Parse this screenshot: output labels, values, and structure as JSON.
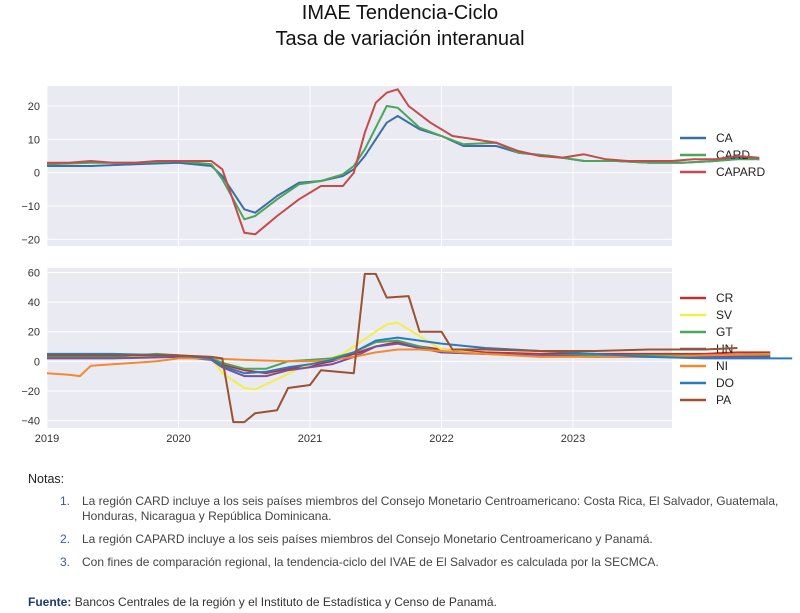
{
  "title": "IMAE Tendencia-Ciclo",
  "subtitle": "Tasa de variación interanual",
  "chart_data": [
    {
      "type": "line",
      "x_start": "2019-01",
      "x_ticks": [
        "2019",
        "2020",
        "2021",
        "2022",
        "2023"
      ],
      "ylim": [
        -22,
        26
      ],
      "y_ticks": [
        20,
        10,
        0,
        -10,
        -20
      ],
      "grid": true,
      "legend": "right",
      "series": [
        {
          "name": "CA",
          "color": "#3a6fa5",
          "values": [
            [
              0,
              2
            ],
            [
              4,
              2
            ],
            [
              8,
              2.5
            ],
            [
              12,
              3
            ],
            [
              15,
              2
            ],
            [
              16,
              -1
            ],
            [
              18,
              -11
            ],
            [
              19,
              -12
            ],
            [
              21,
              -7
            ],
            [
              23,
              -3
            ],
            [
              25,
              -2.5
            ],
            [
              27,
              -1
            ],
            [
              28,
              1
            ],
            [
              29,
              5
            ],
            [
              31,
              15
            ],
            [
              32,
              17
            ],
            [
              34,
              13
            ],
            [
              36,
              11
            ],
            [
              38,
              8
            ],
            [
              41,
              8
            ],
            [
              43,
              6
            ],
            [
              46,
              5
            ],
            [
              49,
              3.5
            ],
            [
              52,
              3.5
            ],
            [
              55,
              3
            ],
            [
              58,
              3
            ],
            [
              61,
              3.5
            ],
            [
              63,
              4.5
            ],
            [
              65,
              4
            ]
          ]
        },
        {
          "name": "CARD",
          "color": "#4ea45a",
          "values": [
            [
              0,
              2.5
            ],
            [
              4,
              3
            ],
            [
              8,
              3
            ],
            [
              12,
              3.5
            ],
            [
              15,
              2.5
            ],
            [
              16,
              -2
            ],
            [
              18,
              -14
            ],
            [
              19,
              -13
            ],
            [
              21,
              -8
            ],
            [
              23,
              -3.5
            ],
            [
              25,
              -2.5
            ],
            [
              27,
              -0.5
            ],
            [
              28,
              2
            ],
            [
              29,
              7
            ],
            [
              31,
              20
            ],
            [
              32,
              19.5
            ],
            [
              34,
              13.5
            ],
            [
              36,
              11
            ],
            [
              38,
              8.5
            ],
            [
              41,
              9
            ],
            [
              43,
              6
            ],
            [
              46,
              5
            ],
            [
              49,
              3.5
            ],
            [
              52,
              3.5
            ],
            [
              55,
              3
            ],
            [
              58,
              3
            ],
            [
              61,
              3.5
            ],
            [
              63,
              4
            ],
            [
              65,
              4
            ]
          ]
        },
        {
          "name": "CAPARD",
          "color": "#c44b4b",
          "values": [
            [
              0,
              3
            ],
            [
              2,
              3
            ],
            [
              4,
              3.5
            ],
            [
              6,
              3
            ],
            [
              8,
              3
            ],
            [
              10,
              3.5
            ],
            [
              12,
              3.5
            ],
            [
              15,
              3.5
            ],
            [
              16,
              1
            ],
            [
              18,
              -18
            ],
            [
              19,
              -18.5
            ],
            [
              21,
              -13
            ],
            [
              23,
              -8
            ],
            [
              25,
              -4
            ],
            [
              27,
              -4
            ],
            [
              28,
              0
            ],
            [
              29,
              12
            ],
            [
              30,
              21
            ],
            [
              31,
              24
            ],
            [
              32,
              25
            ],
            [
              33,
              20
            ],
            [
              35,
              15
            ],
            [
              37,
              11
            ],
            [
              39,
              10
            ],
            [
              41,
              9
            ],
            [
              43,
              6.5
            ],
            [
              45,
              5
            ],
            [
              47,
              4.5
            ],
            [
              49,
              5.5
            ],
            [
              51,
              4
            ],
            [
              53,
              3.5
            ],
            [
              55,
              3.5
            ],
            [
              57,
              3.5
            ],
            [
              59,
              4
            ],
            [
              61,
              4
            ],
            [
              63,
              5
            ],
            [
              65,
              4.5
            ]
          ]
        }
      ]
    },
    {
      "type": "line",
      "x_start": "2019-01",
      "x_ticks": [
        "2019",
        "2020",
        "2021",
        "2022",
        "2023"
      ],
      "ylim": [
        -45,
        63
      ],
      "y_ticks": [
        60,
        40,
        20,
        0,
        -20,
        -40
      ],
      "grid": true,
      "legend": "right",
      "series": [
        {
          "name": "CR",
          "color": "#c0302e",
          "values": [
            [
              0,
              3
            ],
            [
              6,
              3
            ],
            [
              12,
              3
            ],
            [
              15,
              2
            ],
            [
              16,
              -2
            ],
            [
              18,
              -6
            ],
            [
              20,
              -8
            ],
            [
              22,
              -5
            ],
            [
              24,
              -3
            ],
            [
              26,
              0
            ],
            [
              28,
              5
            ],
            [
              30,
              10
            ],
            [
              32,
              13
            ],
            [
              34,
              10
            ],
            [
              36,
              8
            ],
            [
              40,
              6
            ],
            [
              45,
              5
            ],
            [
              50,
              5
            ],
            [
              55,
              5
            ],
            [
              60,
              5
            ],
            [
              63,
              6
            ],
            [
              66,
              6
            ]
          ]
        },
        {
          "name": "SV",
          "color": "#f2ee4a",
          "values": [
            [
              0,
              3
            ],
            [
              6,
              3
            ],
            [
              12,
              4
            ],
            [
              15,
              2
            ],
            [
              16,
              -8
            ],
            [
              18,
              -18
            ],
            [
              19,
              -19
            ],
            [
              21,
              -12
            ],
            [
              23,
              -5
            ],
            [
              25,
              0
            ],
            [
              27,
              5
            ],
            [
              29,
              15
            ],
            [
              31,
              25
            ],
            [
              32,
              26
            ],
            [
              34,
              17
            ],
            [
              36,
              8
            ],
            [
              40,
              5
            ],
            [
              45,
              4
            ],
            [
              50,
              3
            ],
            [
              55,
              3
            ],
            [
              60,
              4
            ],
            [
              66,
              4
            ]
          ]
        },
        {
          "name": "GT",
          "color": "#4ea45a",
          "values": [
            [
              0,
              3
            ],
            [
              6,
              3
            ],
            [
              10,
              5
            ],
            [
              12,
              4
            ],
            [
              15,
              2
            ],
            [
              16,
              -1
            ],
            [
              18,
              -5
            ],
            [
              20,
              -5
            ],
            [
              22,
              0
            ],
            [
              24,
              1
            ],
            [
              26,
              2
            ],
            [
              28,
              6
            ],
            [
              30,
              13
            ],
            [
              32,
              14
            ],
            [
              34,
              10
            ],
            [
              36,
              6
            ],
            [
              40,
              5
            ],
            [
              45,
              4
            ],
            [
              50,
              4
            ],
            [
              55,
              4
            ],
            [
              60,
              4
            ],
            [
              66,
              4
            ]
          ]
        },
        {
          "name": "HN",
          "color": "#7a4fa0",
          "values": [
            [
              0,
              2
            ],
            [
              6,
              2
            ],
            [
              12,
              3
            ],
            [
              15,
              1
            ],
            [
              16,
              -4
            ],
            [
              18,
              -10
            ],
            [
              20,
              -10
            ],
            [
              22,
              -6
            ],
            [
              24,
              -4
            ],
            [
              26,
              -2
            ],
            [
              28,
              3
            ],
            [
              30,
              10
            ],
            [
              32,
              12
            ],
            [
              34,
              9
            ],
            [
              36,
              6
            ],
            [
              40,
              5
            ],
            [
              45,
              4
            ],
            [
              50,
              3
            ],
            [
              55,
              3
            ],
            [
              60,
              3
            ],
            [
              66,
              3
            ]
          ]
        },
        {
          "name": "NI",
          "color": "#f28a30",
          "values": [
            [
              0,
              -8
            ],
            [
              2,
              -9
            ],
            [
              3,
              -10
            ],
            [
              4,
              -3
            ],
            [
              6,
              -2
            ],
            [
              10,
              0
            ],
            [
              12,
              2
            ],
            [
              15,
              2
            ],
            [
              18,
              1
            ],
            [
              22,
              0
            ],
            [
              24,
              0
            ],
            [
              26,
              1
            ],
            [
              28,
              3
            ],
            [
              30,
              6
            ],
            [
              32,
              8
            ],
            [
              34,
              8
            ],
            [
              36,
              7
            ],
            [
              40,
              5
            ],
            [
              45,
              3
            ],
            [
              50,
              3
            ],
            [
              55,
              3
            ],
            [
              60,
              4
            ],
            [
              66,
              5
            ]
          ]
        },
        {
          "name": "DO",
          "color": "#2a7bbd",
          "values": [
            [
              0,
              5
            ],
            [
              6,
              5
            ],
            [
              12,
              4
            ],
            [
              15,
              2
            ],
            [
              16,
              -3
            ],
            [
              18,
              -8
            ],
            [
              20,
              -7
            ],
            [
              22,
              -4
            ],
            [
              24,
              -2
            ],
            [
              26,
              1
            ],
            [
              28,
              6
            ],
            [
              30,
              14
            ],
            [
              32,
              16
            ],
            [
              34,
              14
            ],
            [
              36,
              12
            ],
            [
              40,
              9
            ],
            [
              45,
              7
            ],
            [
              50,
              5
            ],
            [
              55,
              3
            ],
            [
              60,
              2
            ],
            [
              66,
              2
            ],
            [
              68,
              2
            ]
          ]
        },
        {
          "name": "PA",
          "color": "#9a5230",
          "values": [
            [
              0,
              4
            ],
            [
              6,
              4
            ],
            [
              12,
              4
            ],
            [
              15,
              3
            ],
            [
              16,
              2
            ],
            [
              17,
              -41
            ],
            [
              18,
              -41
            ],
            [
              19,
              -35
            ],
            [
              21,
              -33
            ],
            [
              22,
              -18
            ],
            [
              24,
              -16
            ],
            [
              25,
              -6
            ],
            [
              28,
              -8
            ],
            [
              29,
              59
            ],
            [
              30,
              59
            ],
            [
              31,
              43
            ],
            [
              33,
              44
            ],
            [
              34,
              20
            ],
            [
              36,
              20
            ],
            [
              37,
              8
            ],
            [
              40,
              8
            ],
            [
              45,
              7
            ],
            [
              50,
              7
            ],
            [
              55,
              8
            ],
            [
              60,
              8
            ],
            [
              63,
              9
            ]
          ]
        }
      ]
    }
  ],
  "notes": {
    "heading": "Notas:",
    "items": [
      {
        "num": "1.",
        "text": "La región CARD incluye a los seis países miembros del Consejo Monetario Centroamericano: Costa Rica, El Salvador, Guatemala, Honduras, Nicaragua y República Dominicana."
      },
      {
        "num": "2.",
        "text": "La región CAPARD incluye a los seis países miembros del Consejo Monetario Centroamericano y Panamá."
      },
      {
        "num": "3.",
        "text": "Con fines de comparación regional, la tendencia-ciclo del IVAE de El Salvador es calculada por la SECMCA."
      }
    ]
  },
  "source": {
    "label": "Fuente:",
    "text": "Bancos Centrales de la región y el Instituto de Estadística y Censo de Panamá."
  }
}
